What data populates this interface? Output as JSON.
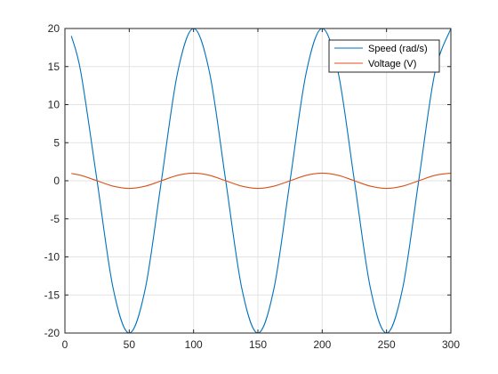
{
  "chart_data": {
    "type": "line",
    "title": "",
    "xlabel": "",
    "ylabel": "",
    "xlim": [
      0,
      300
    ],
    "ylim": [
      -20,
      20
    ],
    "xticks": [
      0,
      50,
      100,
      150,
      200,
      250,
      300
    ],
    "yticks": [
      -20,
      -15,
      -10,
      -5,
      0,
      5,
      10,
      15,
      20
    ],
    "grid": true,
    "legend_position": "top-right",
    "series": [
      {
        "name": "Speed (rad/s)",
        "color": "#0072BD",
        "x": [
          5,
          12.5,
          25,
          37.5,
          50,
          62.5,
          75,
          87.5,
          100,
          112.5,
          125,
          137.5,
          150,
          162.5,
          175,
          187.5,
          200,
          212.5,
          225,
          237.5,
          250,
          262.5,
          275,
          287.5,
          300
        ],
        "y": [
          19.02,
          14.14,
          0,
          -14.14,
          -20,
          -14.14,
          0,
          14.14,
          20,
          14.14,
          0,
          -14.14,
          -20,
          -14.14,
          0,
          14.14,
          20,
          14.14,
          0,
          -14.14,
          -20,
          -14.14,
          0,
          14.14,
          20
        ]
      },
      {
        "name": "Voltage (V)",
        "color": "#D95319",
        "x": [
          5,
          12.5,
          25,
          37.5,
          50,
          62.5,
          75,
          87.5,
          100,
          112.5,
          125,
          137.5,
          150,
          162.5,
          175,
          187.5,
          200,
          212.5,
          225,
          237.5,
          250,
          262.5,
          275,
          287.5,
          300
        ],
        "y": [
          0.95,
          0.71,
          0,
          -0.71,
          -1,
          -0.71,
          0,
          0.71,
          1,
          0.71,
          0,
          -0.71,
          -1,
          -0.71,
          0,
          0.71,
          1,
          0.71,
          0,
          -0.71,
          -1,
          -0.71,
          0,
          0.71,
          1
        ]
      }
    ]
  }
}
